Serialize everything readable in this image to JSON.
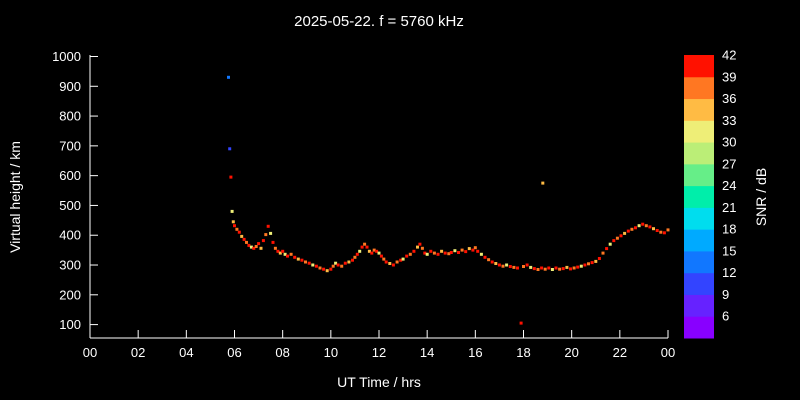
{
  "chart_data": {
    "type": "scatter",
    "title": "2025-05-22. f = 5760 kHz",
    "xlabel": "UT Time / hrs",
    "ylabel": "Virtual height / km",
    "colorbar_label": "SNR / dB",
    "background": "#000000",
    "axis_color": "#ffffff",
    "xlim": [
      0,
      24
    ],
    "ylim": [
      55,
      1005
    ],
    "grid": false,
    "legend": "colorbar-right",
    "x_tick_values": [
      0,
      2,
      4,
      6,
      8,
      10,
      12,
      14,
      16,
      18,
      20,
      22,
      24
    ],
    "x_tick_labels": [
      "00",
      "02",
      "04",
      "06",
      "08",
      "10",
      "12",
      "14",
      "16",
      "18",
      "20",
      "22",
      "00"
    ],
    "y_tick_values": [
      100,
      200,
      300,
      400,
      500,
      600,
      700,
      800,
      900,
      1000
    ],
    "colorbar": {
      "min": 3,
      "max": 42,
      "tick_values": [
        6,
        9,
        12,
        15,
        18,
        21,
        24,
        27,
        30,
        33,
        36,
        39,
        42
      ],
      "segment_colors": [
        "#8800ff",
        "#6622ff",
        "#3344ff",
        "#1177ff",
        "#00aaff",
        "#00ddee",
        "#00eeaa",
        "#66ee88",
        "#bbee77",
        "#eeee77",
        "#ffbb44",
        "#ff7722",
        "#ff1100"
      ]
    },
    "points_format": [
      "ut_hours",
      "virtual_height_km",
      "snr_db"
    ],
    "points": [
      [
        5.75,
        930,
        13
      ],
      [
        5.8,
        690,
        10
      ],
      [
        5.85,
        595,
        40
      ],
      [
        5.9,
        480,
        31
      ],
      [
        5.95,
        445,
        34
      ],
      [
        6.0,
        432,
        40
      ],
      [
        6.1,
        420,
        37
      ],
      [
        6.2,
        410,
        40
      ],
      [
        6.3,
        396,
        34
      ],
      [
        6.4,
        386,
        40
      ],
      [
        6.5,
        376,
        37
      ],
      [
        6.6,
        366,
        40
      ],
      [
        6.7,
        360,
        31
      ],
      [
        6.8,
        356,
        40
      ],
      [
        6.9,
        362,
        37
      ],
      [
        7.0,
        372,
        40
      ],
      [
        7.1,
        356,
        34
      ],
      [
        7.2,
        382,
        40
      ],
      [
        7.3,
        402,
        37
      ],
      [
        7.4,
        430,
        40
      ],
      [
        7.5,
        406,
        31
      ],
      [
        7.6,
        376,
        40
      ],
      [
        7.7,
        356,
        37
      ],
      [
        7.8,
        346,
        40
      ],
      [
        7.9,
        340,
        34
      ],
      [
        8.0,
        346,
        40
      ],
      [
        8.1,
        336,
        31
      ],
      [
        8.2,
        330,
        40
      ],
      [
        8.35,
        336,
        37
      ],
      [
        8.5,
        326,
        40
      ],
      [
        8.65,
        320,
        34
      ],
      [
        8.8,
        316,
        40
      ],
      [
        8.95,
        310,
        37
      ],
      [
        9.1,
        306,
        40
      ],
      [
        9.25,
        300,
        31
      ],
      [
        9.4,
        296,
        40
      ],
      [
        9.55,
        290,
        37
      ],
      [
        9.7,
        286,
        40
      ],
      [
        9.85,
        281,
        34
      ],
      [
        10.0,
        286,
        40
      ],
      [
        10.1,
        296,
        37
      ],
      [
        10.2,
        306,
        31
      ],
      [
        10.3,
        300,
        40
      ],
      [
        10.45,
        296,
        37
      ],
      [
        10.6,
        306,
        40
      ],
      [
        10.75,
        310,
        34
      ],
      [
        10.9,
        316,
        40
      ],
      [
        11.0,
        326,
        37
      ],
      [
        11.1,
        336,
        40
      ],
      [
        11.2,
        346,
        31
      ],
      [
        11.3,
        360,
        40
      ],
      [
        11.4,
        370,
        37
      ],
      [
        11.5,
        360,
        40
      ],
      [
        11.6,
        346,
        34
      ],
      [
        11.7,
        340,
        40
      ],
      [
        11.8,
        350,
        37
      ],
      [
        11.9,
        346,
        40
      ],
      [
        12.0,
        340,
        31
      ],
      [
        12.1,
        330,
        40
      ],
      [
        12.2,
        320,
        37
      ],
      [
        12.3,
        310,
        40
      ],
      [
        12.45,
        305,
        34
      ],
      [
        12.6,
        300,
        40
      ],
      [
        12.75,
        310,
        37
      ],
      [
        12.9,
        316,
        40
      ],
      [
        13.0,
        320,
        31
      ],
      [
        13.15,
        330,
        40
      ],
      [
        13.3,
        336,
        37
      ],
      [
        13.45,
        346,
        40
      ],
      [
        13.6,
        360,
        34
      ],
      [
        13.7,
        370,
        40
      ],
      [
        13.8,
        356,
        37
      ],
      [
        13.9,
        340,
        40
      ],
      [
        14.0,
        336,
        31
      ],
      [
        14.15,
        346,
        40
      ],
      [
        14.3,
        340,
        37
      ],
      [
        14.45,
        336,
        40
      ],
      [
        14.6,
        346,
        34
      ],
      [
        14.75,
        340,
        40
      ],
      [
        14.9,
        338,
        37
      ],
      [
        15.0,
        342,
        40
      ],
      [
        15.15,
        348,
        31
      ],
      [
        15.3,
        342,
        40
      ],
      [
        15.45,
        350,
        37
      ],
      [
        15.6,
        345,
        40
      ],
      [
        15.75,
        355,
        34
      ],
      [
        15.9,
        350,
        40
      ],
      [
        16.0,
        358,
        37
      ],
      [
        16.1,
        346,
        40
      ],
      [
        16.25,
        336,
        31
      ],
      [
        16.4,
        326,
        40
      ],
      [
        16.55,
        318,
        37
      ],
      [
        16.7,
        310,
        40
      ],
      [
        16.85,
        305,
        34
      ],
      [
        17.0,
        300,
        40
      ],
      [
        17.15,
        296,
        37
      ],
      [
        17.3,
        300,
        31
      ],
      [
        17.45,
        295,
        40
      ],
      [
        17.6,
        292,
        37
      ],
      [
        17.75,
        290,
        40
      ],
      [
        17.9,
        105,
        40
      ],
      [
        18.0,
        295,
        37
      ],
      [
        18.15,
        300,
        40
      ],
      [
        18.3,
        292,
        31
      ],
      [
        18.45,
        288,
        40
      ],
      [
        18.6,
        285,
        37
      ],
      [
        18.75,
        290,
        40
      ],
      [
        18.8,
        575,
        34
      ],
      [
        18.9,
        286,
        37
      ],
      [
        19.05,
        290,
        40
      ],
      [
        19.2,
        285,
        31
      ],
      [
        19.35,
        290,
        40
      ],
      [
        19.5,
        286,
        37
      ],
      [
        19.65,
        288,
        40
      ],
      [
        19.8,
        292,
        34
      ],
      [
        19.95,
        287,
        40
      ],
      [
        20.1,
        290,
        37
      ],
      [
        20.25,
        293,
        40
      ],
      [
        20.4,
        296,
        31
      ],
      [
        20.55,
        300,
        40
      ],
      [
        20.7,
        304,
        37
      ],
      [
        20.85,
        308,
        40
      ],
      [
        21.0,
        312,
        34
      ],
      [
        21.15,
        322,
        40
      ],
      [
        21.3,
        340,
        37
      ],
      [
        21.45,
        355,
        40
      ],
      [
        21.6,
        370,
        31
      ],
      [
        21.75,
        382,
        40
      ],
      [
        21.9,
        390,
        37
      ],
      [
        22.05,
        398,
        40
      ],
      [
        22.2,
        406,
        34
      ],
      [
        22.35,
        414,
        40
      ],
      [
        22.5,
        420,
        37
      ],
      [
        22.65,
        425,
        40
      ],
      [
        22.8,
        432,
        31
      ],
      [
        22.95,
        437,
        40
      ],
      [
        23.1,
        432,
        37
      ],
      [
        23.25,
        428,
        40
      ],
      [
        23.4,
        422,
        34
      ],
      [
        23.55,
        416,
        40
      ],
      [
        23.7,
        410,
        37
      ],
      [
        23.85,
        408,
        40
      ],
      [
        24.0,
        418,
        37
      ]
    ]
  }
}
